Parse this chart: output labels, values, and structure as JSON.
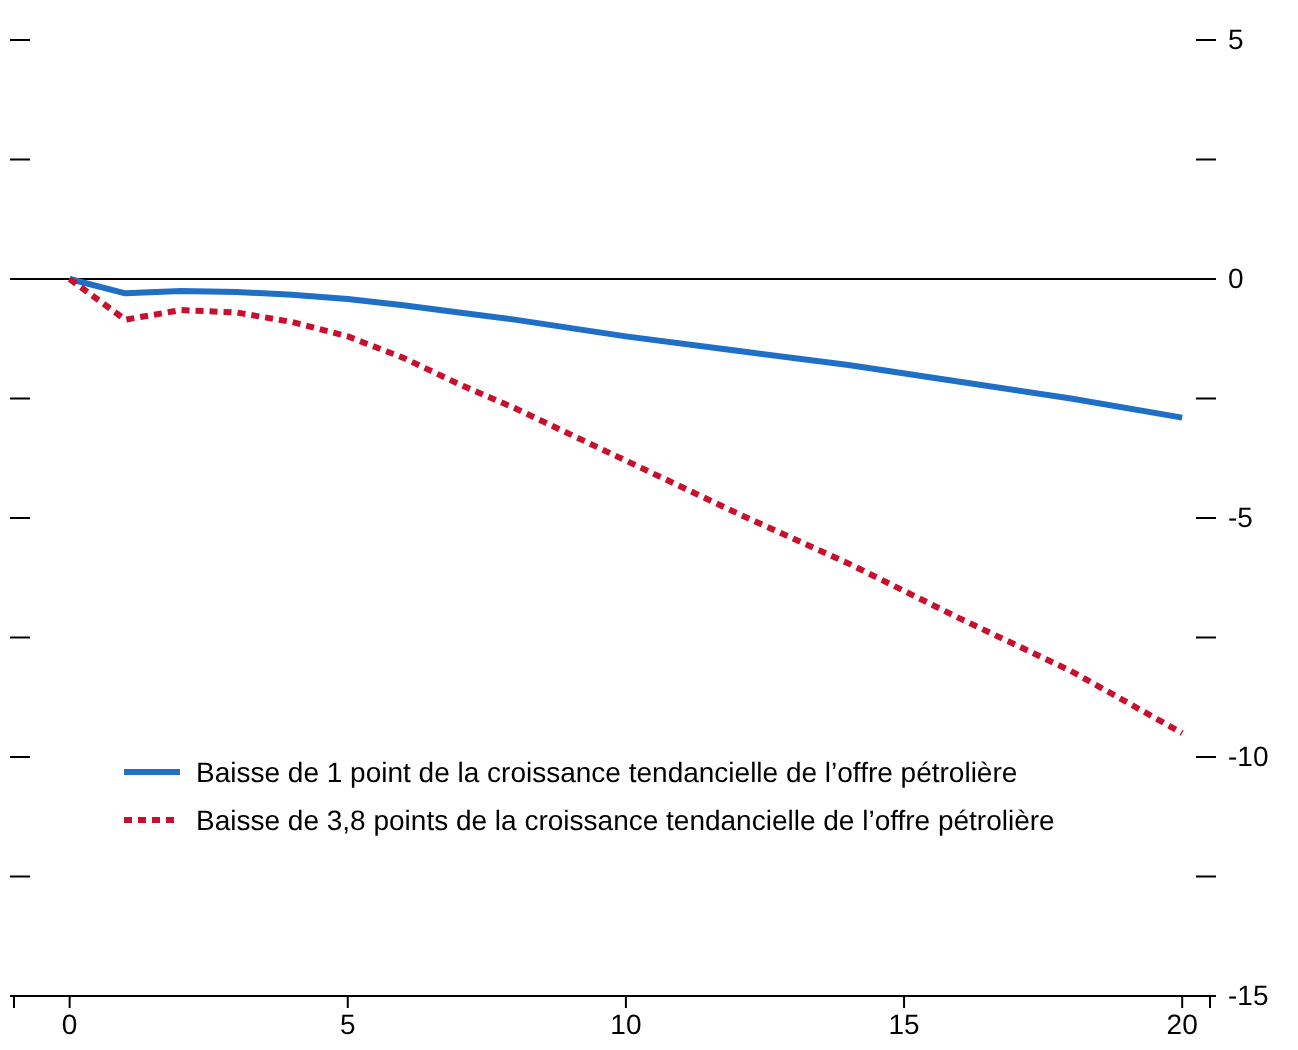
{
  "chart_data": {
    "type": "line",
    "x": [
      0,
      1,
      2,
      3,
      4,
      5,
      6,
      7,
      8,
      10,
      12,
      14,
      16,
      18,
      20
    ],
    "series": [
      {
        "name": "Baisse de 1 point de la croissance tendancielle de l’offre pétrolière",
        "color": "#1f6fc6",
        "line_style": "solid",
        "values": [
          0,
          -0.3,
          -0.25,
          -0.27,
          -0.33,
          -0.42,
          -0.55,
          -0.7,
          -0.85,
          -1.2,
          -1.5,
          -1.8,
          -2.15,
          -2.5,
          -2.9
        ]
      },
      {
        "name": "Baisse de 3,8 points de la croissance tendancielle de l’offre pétrolière",
        "color": "#c8102e",
        "line_style": "dotted",
        "values": [
          0,
          -0.85,
          -0.65,
          -0.7,
          -0.9,
          -1.2,
          -1.65,
          -2.2,
          -2.7,
          -3.8,
          -4.9,
          -5.95,
          -7.1,
          -8.2,
          -9.5
        ]
      }
    ],
    "xlim": [
      -1,
      20.5
    ],
    "xticks": [
      0,
      5,
      10,
      15,
      20
    ],
    "ylim": [
      -15,
      5
    ],
    "yticks": [
      5,
      {
        "value": 2.5,
        "label": null
      },
      0,
      {
        "value": -2.5,
        "label": null
      },
      -5,
      {
        "value": -7.5,
        "label": null
      },
      -10,
      {
        "value": -12.5,
        "label": null
      },
      -15
    ],
    "ref_lines": [
      {
        "axis": "y",
        "value": 0,
        "color": "#000000"
      }
    ],
    "legend": "bottom left",
    "grid": false,
    "marker": "none"
  }
}
